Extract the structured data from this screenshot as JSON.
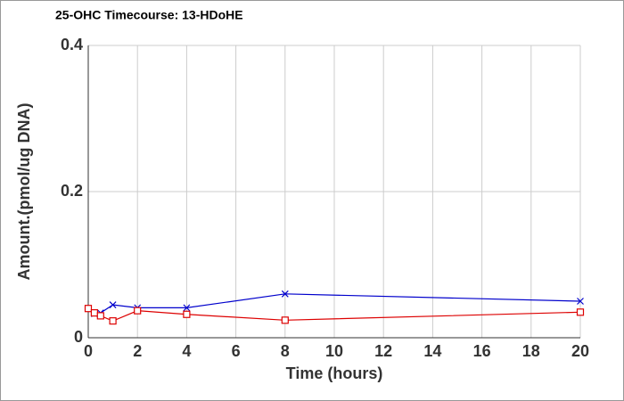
{
  "chart_data": {
    "type": "line",
    "title": "25-OHC Timecourse: 13-HDoHE",
    "x_label": "Time (hours)",
    "y_label": "Amount.(pmol/ug DNA)",
    "x": [
      0,
      0.25,
      0.5,
      1,
      2,
      4,
      8,
      20
    ],
    "series": [
      {
        "color": "#0000cc",
        "marker": "x",
        "values": [
          null,
          0.033,
          0.034,
          0.045,
          0.041,
          0.041,
          0.06,
          0.05
        ]
      },
      {
        "color": "#dd0000",
        "marker": "square",
        "values": [
          0.04,
          0.034,
          0.03,
          0.023,
          0.037,
          0.032,
          0.024,
          0.035
        ]
      }
    ],
    "xlim": [
      0,
      20
    ],
    "xticks": [
      0,
      2,
      4,
      6,
      8,
      10,
      12,
      14,
      16,
      18,
      20
    ],
    "ylim": [
      0,
      0.4
    ],
    "yticks": [
      0,
      0.2,
      0.4
    ],
    "grid": true
  }
}
